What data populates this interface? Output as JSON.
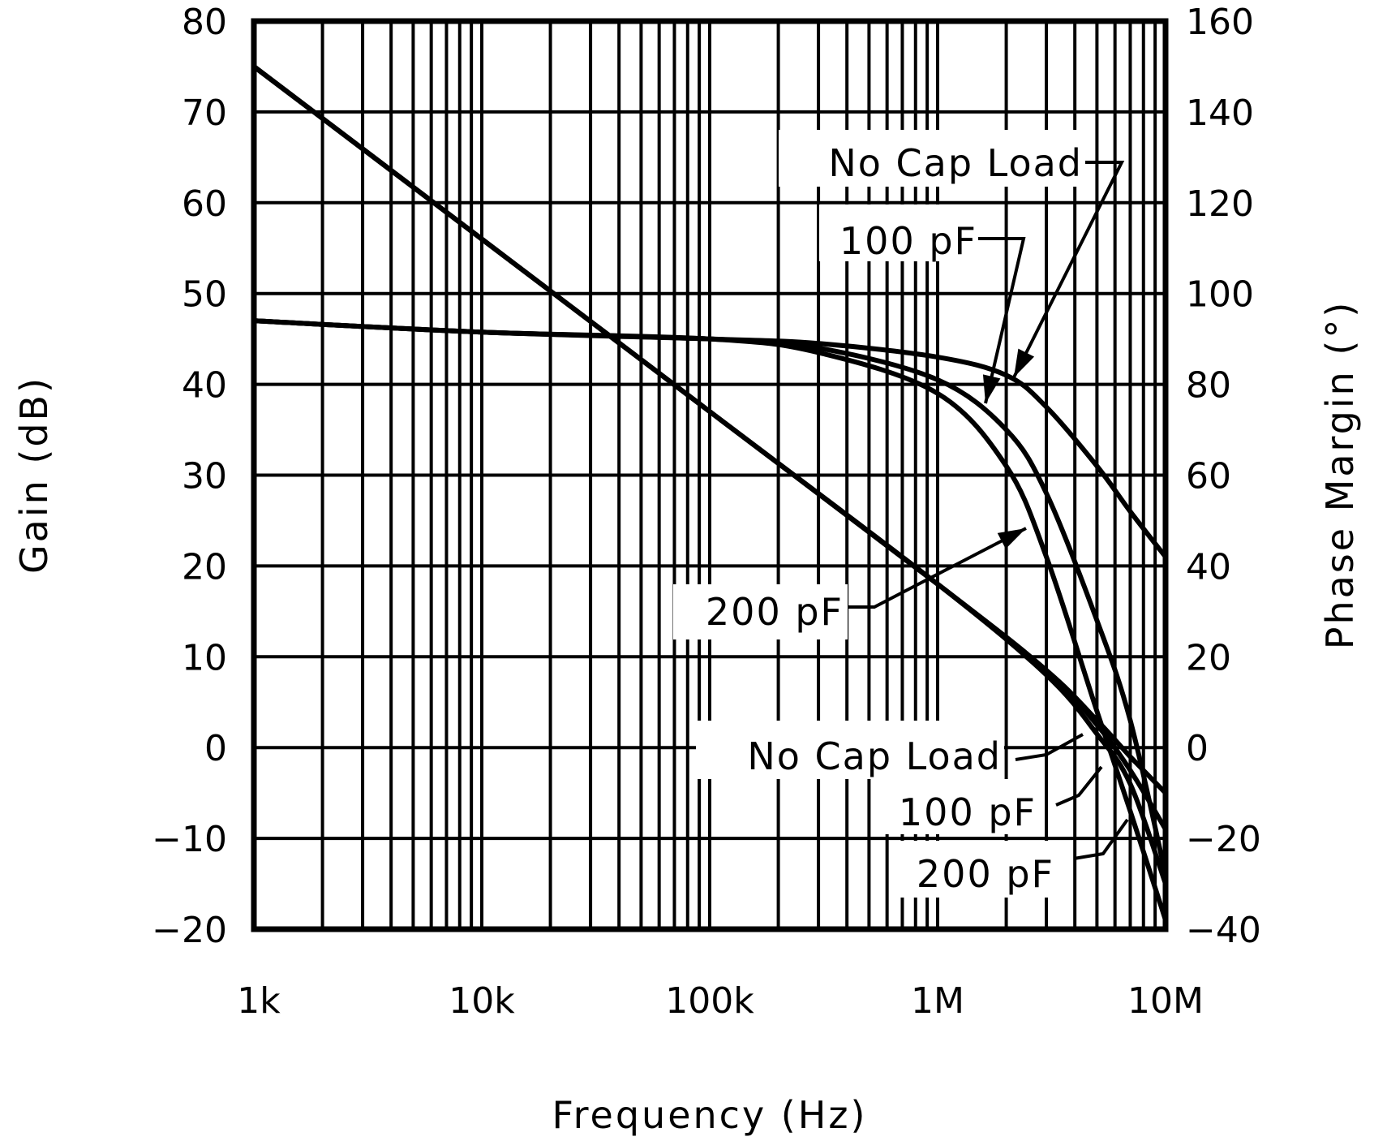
{
  "chart_data": {
    "type": "line",
    "title": "",
    "xlabel": "Frequency (Hz)",
    "ylabel": "Gain (dB)",
    "ylabel_right": "Phase Margin (°)",
    "xscale": "log",
    "xlim": [
      1000,
      10000000
    ],
    "ylim": [
      -20,
      80
    ],
    "ylim_right": [
      -40,
      160
    ],
    "grid": true,
    "x_tick_labels": [
      "1k",
      "10k",
      "100k",
      "1M",
      "10M"
    ],
    "y_tick_labels": [
      "80",
      "70",
      "60",
      "50",
      "40",
      "30",
      "20",
      "10",
      "0",
      "-10",
      "-20"
    ],
    "y_right_tick_labels": [
      "160",
      "140",
      "120",
      "100",
      "80",
      "60",
      "40",
      "20",
      "0",
      "-20",
      "-40"
    ],
    "series": [
      {
        "name": "Gain - No Cap Load",
        "axis": "left",
        "x": [
          1000,
          10000,
          100000,
          1000000,
          3000000,
          5000000,
          7000000,
          10000000
        ],
        "y": [
          75,
          56,
          37,
          18,
          8.5,
          3,
          -1,
          -5
        ]
      },
      {
        "name": "Gain - 100 pF",
        "axis": "left",
        "x": [
          1000,
          10000,
          100000,
          1000000,
          3000000,
          5000000,
          7000000,
          10000000
        ],
        "y": [
          75,
          56,
          37,
          18,
          8.5,
          2.5,
          -2.5,
          -9
        ]
      },
      {
        "name": "Gain - 200 pF",
        "axis": "left",
        "x": [
          1000,
          10000,
          100000,
          1000000,
          3000000,
          5000000,
          7000000,
          10000000
        ],
        "y": [
          75,
          56,
          37,
          18,
          8,
          1.5,
          -4,
          -15
        ]
      },
      {
        "name": "Phase Margin - No Cap Load",
        "axis": "right",
        "x": [
          1000,
          10000,
          100000,
          300000,
          1000000,
          2000000,
          3000000,
          5000000,
          7000000,
          10000000
        ],
        "y": [
          94,
          91.5,
          90,
          89,
          86,
          82,
          75,
          62,
          52,
          42
        ]
      },
      {
        "name": "Phase Margin - 100 pF",
        "axis": "right",
        "x": [
          1000,
          10000,
          100000,
          300000,
          1000000,
          2000000,
          3000000,
          5000000,
          7000000,
          10000000
        ],
        "y": [
          94,
          91.5,
          90,
          88,
          81,
          70,
          56,
          28,
          6,
          -28
        ]
      },
      {
        "name": "Phase Margin - 200 pF",
        "axis": "right",
        "x": [
          1000,
          10000,
          100000,
          300000,
          1000000,
          2000000,
          3000000,
          5000000,
          7000000,
          10000000
        ],
        "y": [
          94,
          91.5,
          90,
          87,
          78,
          62,
          42,
          8,
          -14,
          -38
        ]
      }
    ],
    "annotations": [
      {
        "text": "No Cap Load",
        "target": "Phase Margin - No Cap Load"
      },
      {
        "text": "100 pF",
        "target": "Phase Margin - 100 pF"
      },
      {
        "text": "200 pF",
        "target": "Phase Margin - 200 pF"
      },
      {
        "text": "No Cap Load",
        "target": "Gain - No Cap Load"
      },
      {
        "text": "100 pF",
        "target": "Gain - 100 pF"
      },
      {
        "text": "200 pF",
        "target": "Gain - 200 pF"
      }
    ]
  },
  "labels": {
    "xlabel": "Frequency (Hz)",
    "ylabel_left": "Gain (dB)",
    "ylabel_right": "Phase Margin (°)",
    "ann_pm_nocap": "No Cap Load",
    "ann_pm_100": "100 pF",
    "ann_pm_200": "200 pF",
    "ann_gain_nocap": "No Cap Load",
    "ann_gain_100": "100 pF",
    "ann_gain_200": "200 pF"
  }
}
